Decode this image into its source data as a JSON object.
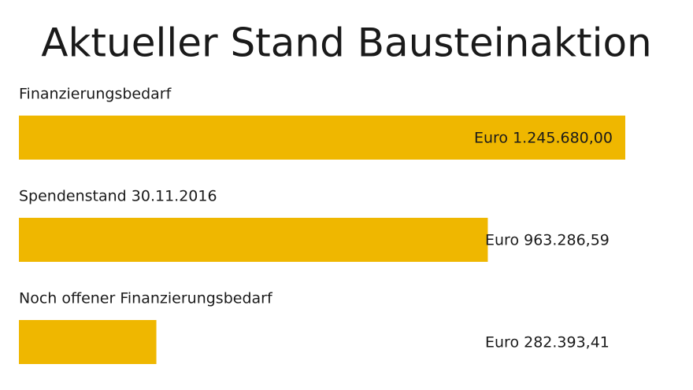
{
  "chart_data": {
    "type": "bar",
    "orientation": "horizontal",
    "title": "Aktueller Stand Bausteinaktion",
    "categories": [
      "Finanzierungsbedarf",
      "Spendenstand 30.11.2016",
      "Noch offener Finanzierungsbedarf"
    ],
    "values": [
      1245680,
      963286.59,
      282393.41
    ],
    "value_labels": [
      "Euro 1.245.680,00",
      "Euro 963.286,59",
      "Euro 282.393,41"
    ],
    "color": "#efb700"
  }
}
